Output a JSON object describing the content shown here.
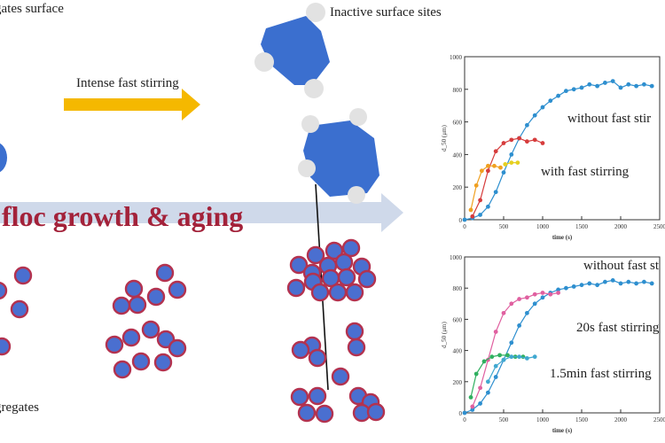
{
  "labels": {
    "top_left": "gates surface",
    "inactive": "Inactive surface sites",
    "stirring": "Intense fast stirring",
    "growth": "floc growth & aging",
    "bottom_left": "gregates"
  },
  "colors": {
    "particle_fill": "#4a6fd0",
    "particle_ring": "#b3324f",
    "floc": "#3b6fcf",
    "arrow": "#f5b800",
    "band": "#cfd9ea",
    "growth_text": "#a3223a",
    "site": "#e2e2e2"
  },
  "chart_data": [
    {
      "type": "scatter",
      "ylabel": "d_50 (μm)",
      "xlabel": "time (s)",
      "xlim": [
        0,
        2500
      ],
      "ylim": [
        0,
        1000
      ],
      "xticks": [
        0,
        500,
        1000,
        1500,
        2000,
        2500
      ],
      "yticks": [
        0,
        200,
        400,
        600,
        800,
        1000
      ],
      "xtick_labels": [
        "0",
        "500",
        "1000",
        "1500",
        "2000",
        "2500"
      ],
      "ytick_labels": [
        "0",
        "200",
        "400",
        "600",
        "800",
        "1000"
      ],
      "annotations": [
        "without fast stir",
        "with fast stirring"
      ],
      "series": [
        {
          "color": "#2e8fcf",
          "x": [
            0,
            100,
            200,
            300,
            400,
            500,
            600,
            700,
            800,
            900,
            1000,
            1100,
            1200,
            1300,
            1400,
            1500,
            1600,
            1700,
            1800,
            1900,
            2000,
            2100,
            2200,
            2300,
            2400
          ],
          "y": [
            0,
            10,
            30,
            80,
            170,
            290,
            400,
            500,
            580,
            640,
            690,
            730,
            760,
            790,
            800,
            810,
            830,
            820,
            840,
            850,
            810,
            830,
            820,
            830,
            820
          ]
        },
        {
          "color": "#d63c3c",
          "x": [
            100,
            200,
            300,
            400,
            500,
            600,
            700,
            800,
            900,
            1000
          ],
          "y": [
            20,
            120,
            300,
            420,
            470,
            490,
            500,
            480,
            490,
            470
          ]
        },
        {
          "color": "#f0a020",
          "x": [
            80,
            150,
            220,
            300,
            380,
            460
          ],
          "y": [
            60,
            210,
            300,
            330,
            330,
            320
          ]
        },
        {
          "color": "#e6d020",
          "x": [
            520,
            600,
            680
          ],
          "y": [
            340,
            350,
            350
          ]
        }
      ]
    },
    {
      "type": "scatter",
      "ylabel": "d_50 (μm)",
      "xlabel": "time (s)",
      "xlim": [
        0,
        2500
      ],
      "ylim": [
        0,
        1000
      ],
      "xticks": [
        0,
        500,
        1000,
        1500,
        2000,
        2500
      ],
      "yticks": [
        0,
        200,
        400,
        600,
        800,
        1000
      ],
      "xtick_labels": [
        "0",
        "500",
        "1000",
        "1500",
        "2000",
        "2500"
      ],
      "ytick_labels": [
        "0",
        "200",
        "400",
        "600",
        "800",
        "1000"
      ],
      "annotations": [
        "without fast st",
        "20s fast stirring",
        "1.5min fast stirring"
      ],
      "series": [
        {
          "color": "#2e8fcf",
          "x": [
            0,
            100,
            200,
            300,
            400,
            500,
            600,
            700,
            800,
            900,
            1000,
            1100,
            1200,
            1300,
            1400,
            1500,
            1600,
            1700,
            1800,
            1900,
            2000,
            2100,
            2200,
            2300,
            2400
          ],
          "y": [
            0,
            20,
            60,
            130,
            230,
            340,
            450,
            560,
            640,
            700,
            740,
            770,
            790,
            800,
            810,
            820,
            830,
            820,
            840,
            850,
            830,
            840,
            830,
            840,
            830
          ]
        },
        {
          "color": "#e060a0",
          "x": [
            100,
            200,
            300,
            400,
            500,
            600,
            700,
            800,
            900,
            1000,
            1100,
            1200
          ],
          "y": [
            40,
            160,
            340,
            520,
            640,
            700,
            730,
            740,
            760,
            770,
            760,
            770
          ]
        },
        {
          "color": "#30b060",
          "x": [
            80,
            150,
            250,
            350,
            450,
            550,
            650,
            750
          ],
          "y": [
            100,
            250,
            330,
            360,
            370,
            370,
            360,
            360
          ]
        },
        {
          "color": "#40a8d0",
          "x": [
            300,
            400,
            500,
            600,
            700,
            800,
            900
          ],
          "y": [
            200,
            300,
            340,
            360,
            360,
            350,
            360
          ]
        }
      ]
    }
  ]
}
